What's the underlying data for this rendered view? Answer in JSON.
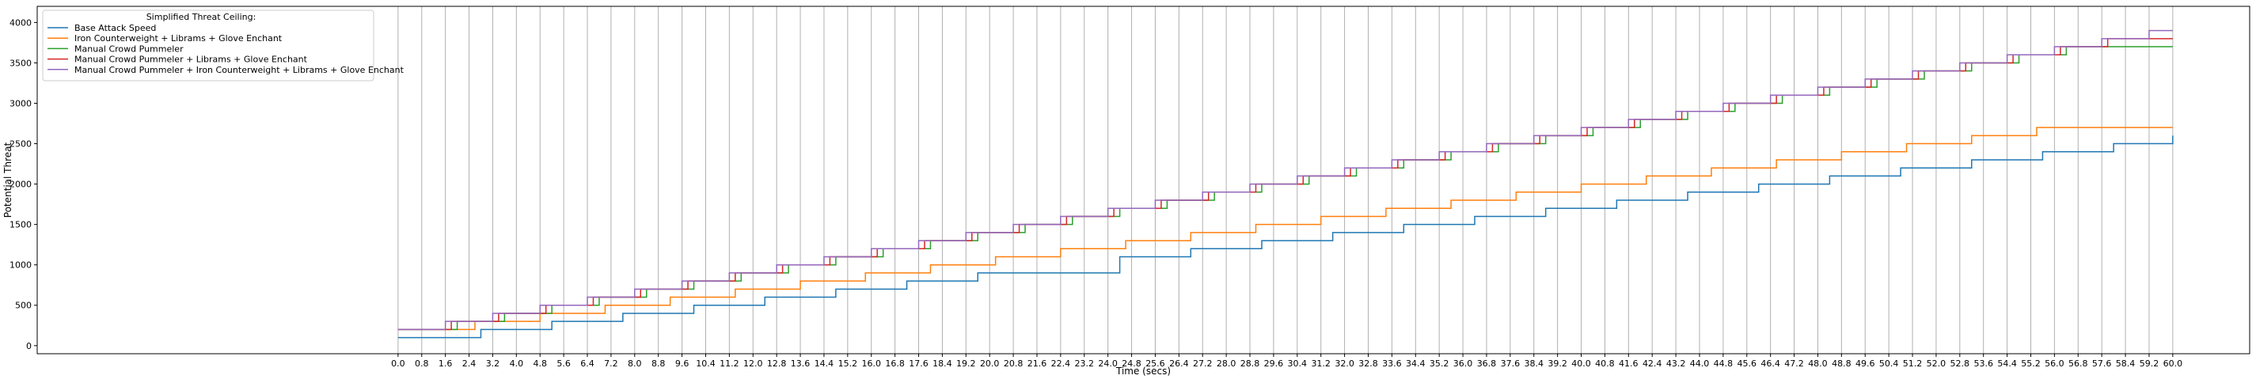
{
  "chart_data": {
    "type": "line",
    "step": "post",
    "title": "",
    "xlabel": "Time (secs)",
    "ylabel": "Potential Threat",
    "xlim": [
      -12.2,
      62.6
    ],
    "ylim": [
      -100,
      4200
    ],
    "grid": {
      "vertical": true,
      "horizontal": false
    },
    "x_ticks": [
      0.0,
      0.8,
      1.6,
      2.4,
      3.2,
      4.0,
      4.8,
      5.6,
      6.4,
      7.2,
      8.0,
      8.8,
      9.6,
      10.4,
      11.2,
      12.0,
      12.8,
      13.6,
      14.4,
      15.2,
      16.0,
      16.8,
      17.6,
      18.4,
      19.2,
      20.0,
      20.8,
      21.6,
      22.4,
      23.2,
      24.0,
      24.8,
      25.6,
      26.4,
      27.2,
      28.0,
      28.8,
      29.6,
      30.4,
      31.2,
      32.0,
      32.8,
      33.6,
      34.4,
      35.2,
      36.0,
      36.8,
      37.6,
      38.4,
      39.2,
      40.0,
      40.8,
      41.6,
      42.4,
      43.2,
      44.0,
      44.8,
      45.6,
      46.4,
      47.2,
      48.0,
      48.8,
      49.6,
      50.4,
      51.2,
      52.0,
      52.8,
      53.6,
      54.4,
      55.2,
      56.0,
      56.8,
      57.6,
      58.4,
      59.2,
      60.0
    ],
    "x_tick_labels": [
      "0.0",
      "0.8",
      "1.6",
      "2.4",
      "3.2",
      "4.0",
      "4.8",
      "5.6",
      "6.4",
      "7.2",
      "8.0",
      "8.8",
      "9.6",
      "10.4",
      "11.2",
      "12.0",
      "12.8",
      "13.6",
      "14.4",
      "15.2",
      "16.0",
      "16.8",
      "17.6",
      "18.4",
      "19.2",
      "20.0",
      "20.8",
      "21.6",
      "22.4",
      "23.2",
      "24.0",
      "24.8",
      "25.6",
      "26.4",
      "27.2",
      "28.0",
      "28.8",
      "29.6",
      "30.4",
      "31.2",
      "32.0",
      "32.8",
      "33.6",
      "34.4",
      "35.2",
      "36.0",
      "36.8",
      "37.6",
      "38.4",
      "39.2",
      "40.0",
      "40.8",
      "41.6",
      "42.4",
      "43.2",
      "44.0",
      "44.8",
      "45.6",
      "46.4",
      "47.2",
      "48.0",
      "48.8",
      "49.6",
      "50.4",
      "51.2",
      "52.0",
      "52.8",
      "53.6",
      "54.4",
      "55.2",
      "56.0",
      "56.8",
      "57.6",
      "58.4",
      "59.2",
      "60.0"
    ],
    "y_ticks": [
      0,
      500,
      1000,
      1500,
      2000,
      2500,
      3000,
      3500,
      4000
    ],
    "y_tick_labels": [
      "0",
      "500",
      "1000",
      "1500",
      "2000",
      "2500",
      "3000",
      "3500",
      "4000"
    ],
    "legend": {
      "title": "Simplified Threat Ceiling:",
      "placement": "top-left"
    },
    "series": [
      {
        "name": "Base Attack Speed",
        "color": "#1f77b4",
        "x": [
          0.0,
          2.8,
          5.2,
          7.6,
          10.0,
          12.4,
          14.8,
          17.2,
          19.6,
          24.4,
          26.8,
          29.2,
          31.6,
          34.0,
          36.4,
          38.8,
          41.2,
          43.6,
          46.0,
          48.4,
          50.8,
          53.2,
          55.6,
          58.0,
          60.0
        ],
        "y": [
          100,
          200,
          300,
          400,
          500,
          600,
          700,
          800,
          900,
          1100,
          1200,
          1300,
          1400,
          1500,
          1600,
          1700,
          1800,
          1900,
          2000,
          2100,
          2200,
          2300,
          2400,
          2500,
          2600
        ]
      },
      {
        "name": "Iron Counterweight + Librams + Glove Enchant",
        "color": "#ff7f0e",
        "x": [
          0.0,
          2.6,
          4.8,
          7.0,
          9.2,
          11.4,
          13.6,
          15.8,
          18.0,
          20.2,
          22.4,
          24.6,
          26.8,
          29.0,
          31.2,
          33.4,
          35.6,
          37.8,
          40.0,
          42.2,
          44.4,
          46.6,
          48.8,
          51.0,
          53.2,
          55.4,
          57.6,
          59.8,
          60.0
        ],
        "y": [
          200,
          300,
          400,
          500,
          600,
          700,
          800,
          900,
          1000,
          1100,
          1200,
          1300,
          1400,
          1500,
          1600,
          1700,
          1800,
          1900,
          2000,
          2100,
          2200,
          2300,
          2400,
          2500,
          2600,
          2700,
          2700,
          2700,
          2700
        ]
      },
      {
        "name": "Manual Crowd Pummeler",
        "color": "#2ca02c",
        "x": [
          0.0,
          2.0,
          3.6,
          5.2,
          6.8,
          8.4,
          10.0,
          11.6,
          13.2,
          14.8,
          16.4,
          18.0,
          19.6,
          21.2,
          22.8,
          24.4,
          26.0,
          27.6,
          29.2,
          30.8,
          32.4,
          34.0,
          35.6,
          37.2,
          38.8,
          40.4,
          42.0,
          43.6,
          45.2,
          46.8,
          48.4,
          50.0,
          51.6,
          53.2,
          54.8,
          56.4,
          58.0,
          60.0
        ],
        "y": [
          200,
          300,
          400,
          500,
          600,
          700,
          800,
          900,
          1000,
          1100,
          1200,
          1300,
          1400,
          1500,
          1600,
          1700,
          1800,
          1900,
          2000,
          2100,
          2200,
          2300,
          2400,
          2500,
          2600,
          2700,
          2800,
          2900,
          3000,
          3100,
          3200,
          3300,
          3400,
          3500,
          3600,
          3700,
          3700,
          3700
        ]
      },
      {
        "name": "Manual Crowd Pummeler + Librams + Glove Enchant",
        "color": "#d62728",
        "x": [
          0.0,
          1.8,
          3.4,
          5.0,
          6.6,
          8.2,
          9.8,
          11.4,
          13.0,
          14.6,
          16.2,
          17.8,
          19.4,
          21.0,
          22.6,
          24.2,
          25.8,
          27.4,
          29.0,
          30.6,
          32.2,
          33.8,
          35.4,
          37.0,
          38.6,
          40.2,
          41.8,
          43.4,
          45.0,
          46.6,
          48.2,
          49.8,
          51.4,
          53.0,
          54.6,
          56.2,
          57.8,
          60.0
        ],
        "y": [
          200,
          300,
          400,
          500,
          600,
          700,
          800,
          900,
          1000,
          1100,
          1200,
          1300,
          1400,
          1500,
          1600,
          1700,
          1800,
          1900,
          2000,
          2100,
          2200,
          2300,
          2400,
          2500,
          2600,
          2700,
          2800,
          2900,
          3000,
          3100,
          3200,
          3300,
          3400,
          3500,
          3600,
          3700,
          3800,
          3800
        ]
      },
      {
        "name": "Manual Crowd Pummeler + Iron Counterweight + Librams + Glove Enchant",
        "color": "#9467bd",
        "x": [
          0.0,
          1.6,
          3.2,
          4.8,
          6.4,
          8.0,
          9.6,
          11.2,
          12.8,
          14.4,
          16.0,
          17.6,
          19.2,
          20.8,
          22.4,
          24.0,
          25.6,
          27.2,
          28.8,
          30.4,
          32.0,
          33.6,
          35.2,
          36.8,
          38.4,
          40.0,
          41.6,
          43.2,
          44.8,
          46.4,
          48.0,
          49.6,
          51.2,
          52.8,
          54.4,
          56.0,
          57.6,
          59.2,
          60.0
        ],
        "y": [
          200,
          300,
          400,
          500,
          600,
          700,
          800,
          900,
          1000,
          1100,
          1200,
          1300,
          1400,
          1500,
          1600,
          1700,
          1800,
          1900,
          2000,
          2100,
          2200,
          2300,
          2400,
          2500,
          2600,
          2700,
          2800,
          2900,
          3000,
          3100,
          3200,
          3300,
          3400,
          3500,
          3600,
          3700,
          3800,
          3900,
          3900
        ]
      }
    ]
  }
}
